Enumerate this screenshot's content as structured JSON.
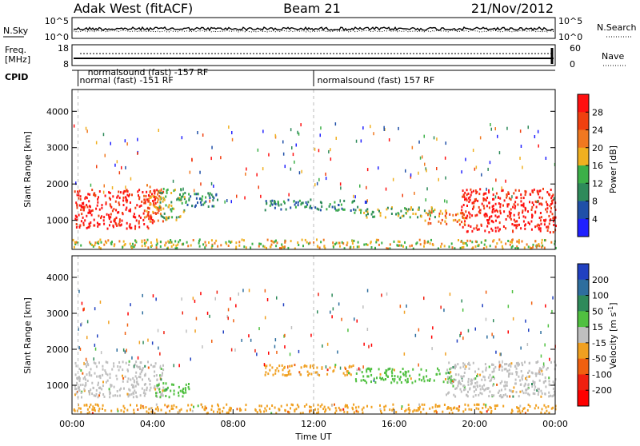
{
  "header": {
    "station": "Adak West (fitACF)",
    "beam": "Beam 21",
    "date": "21/Nov/2012"
  },
  "nsky_panel": {
    "left_label": "N.Sky",
    "left_ticks": [
      "10^5",
      "10^0"
    ],
    "right_ticks": [
      "10^5",
      "10^0"
    ],
    "right_label": "N.Search"
  },
  "freq_panel": {
    "left_label_1": "Freq.",
    "left_label_2": "[MHz]",
    "left_ticks": [
      "18",
      "8"
    ],
    "right_ticks": [
      "60",
      "0"
    ],
    "right_label": "Nave"
  },
  "cpid": {
    "label": "CPID",
    "entries": [
      {
        "text": "normalsound (fast) -157 RF",
        "hour": 0.7,
        "row": 0
      },
      {
        "text": "normal (fast) -151 RF",
        "hour": 0.3,
        "row": 1
      },
      {
        "text": "normalsound (fast) 157 RF",
        "hour": 12.1,
        "row": 1
      }
    ],
    "dividers_hours": [
      0.3,
      12.0
    ]
  },
  "chart_data": [
    {
      "type": "heatmap",
      "parameter": "Power",
      "ylabel": "Slant Range [km]",
      "xlabel": "Time UT",
      "xlim_hours": [
        0,
        24
      ],
      "ylim_km": [
        200,
        4600
      ],
      "y_ticks": [
        1000,
        2000,
        3000,
        4000
      ],
      "colorbar": {
        "label": "Power [dB]",
        "ticks": [
          "4",
          "8",
          "12",
          "16",
          "20",
          "24",
          "28"
        ],
        "colors": [
          "#2020ff",
          "#2050a8",
          "#2e8a5a",
          "#3cb048",
          "#f0b020",
          "#f07820",
          "#f04010",
          "#ff1010"
        ]
      },
      "echo_regions": [
        {
          "t0": 0.1,
          "t1": 4.2,
          "r0": 800,
          "r1": 1900,
          "level": 28
        },
        {
          "t0": 3.5,
          "t1": 4.5,
          "r0": 1000,
          "r1": 2000,
          "level": 20
        },
        {
          "t0": 4.3,
          "t1": 5.6,
          "r0": 1000,
          "r1": 1900,
          "level": 12
        },
        {
          "t0": 5.2,
          "t1": 7.3,
          "r0": 1400,
          "r1": 1800,
          "level": 8
        },
        {
          "t0": 9.5,
          "t1": 14.0,
          "r0": 1300,
          "r1": 1600,
          "level": 8
        },
        {
          "t0": 14.0,
          "t1": 18.0,
          "r0": 1100,
          "r1": 1400,
          "level": 12
        },
        {
          "t0": 17.5,
          "t1": 19.5,
          "r0": 900,
          "r1": 1300,
          "level": 20
        },
        {
          "t0": 19.3,
          "t1": 24.0,
          "r0": 700,
          "r1": 1900,
          "level": 28
        },
        {
          "t0": 0.0,
          "t1": 24.0,
          "r0": 250,
          "r1": 500,
          "level": 16
        }
      ]
    },
    {
      "type": "heatmap",
      "parameter": "Velocity",
      "ylabel": "Slant Range [km]",
      "xlabel": "Time UT",
      "xlim_hours": [
        0,
        24
      ],
      "ylim_km": [
        200,
        4600
      ],
      "y_ticks": [
        1000,
        2000,
        3000,
        4000
      ],
      "x_ticks": [
        "00:00",
        "04:00",
        "08:00",
        "12:00",
        "16:00",
        "20:00",
        "00:00"
      ],
      "colorbar": {
        "label": "Velocity [m s^-1]",
        "ticks": [
          "200",
          "100",
          "50",
          "15",
          "-15",
          "-50",
          "-100",
          "-200"
        ],
        "colors": [
          "#2040c0",
          "#2e6e9e",
          "#2e8a5a",
          "#50c040",
          "#bfbfbf",
          "#f0a020",
          "#f06010",
          "#f02010",
          "#ff0000"
        ]
      },
      "echo_regions": [
        {
          "t0": 0.1,
          "t1": 4.5,
          "r0": 700,
          "r1": 1700,
          "level": 0
        },
        {
          "t0": 4.0,
          "t1": 5.8,
          "r0": 700,
          "r1": 1100,
          "level": 30
        },
        {
          "t0": 9.5,
          "t1": 14.0,
          "r0": 1300,
          "r1": 1600,
          "level": -30
        },
        {
          "t0": 14.0,
          "t1": 19.0,
          "r0": 1100,
          "r1": 1500,
          "level": 30
        },
        {
          "t0": 18.5,
          "t1": 24.0,
          "r0": 700,
          "r1": 1700,
          "level": 0
        },
        {
          "t0": 0.0,
          "t1": 24.0,
          "r0": 250,
          "r1": 500,
          "level": -30
        }
      ]
    }
  ]
}
